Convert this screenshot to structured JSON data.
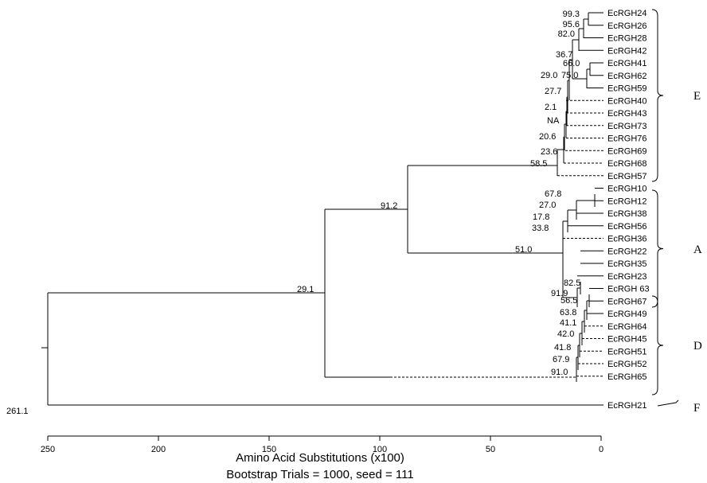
{
  "tree": {
    "leaves": [
      "EcRGH24",
      "EcRGH26",
      "EcRGH28",
      "EcRGH42",
      "EcRGH41",
      "EcRGH62",
      "EcRGH59",
      "EcRGH40",
      "EcRGH43",
      "EcRGH73",
      "EcRGH76",
      "EcRGH69",
      "EcRGH68",
      "EcRGH57",
      "EcRGH10",
      "EcRGH12",
      "EcRGH38",
      "EcRGH56",
      "EcRGH36",
      "EcRGH22",
      "EcRGH35",
      "EcRGH23",
      "EcRGH 63",
      "EcRGH67",
      "EcRGH49",
      "EcRGH64",
      "EcRGH45",
      "EcRGH51",
      "EcRGH52",
      "EcRGH65",
      "EcRGH21"
    ],
    "node_labels": [
      "99.3",
      "95.6",
      "82.0",
      "36.7",
      "66.0",
      "29.0",
      "75.0",
      "27.7",
      "2.1",
      "NA",
      "20.6",
      "23.6",
      "58.5",
      "67.8",
      "27.0",
      "17.8",
      "33.8",
      "51.0",
      "82.5",
      "91.9",
      "91.2",
      "56.5",
      "63.8",
      "41.1",
      "42.0",
      "41.8",
      "67.9",
      "91.0",
      "29.1",
      "261.1"
    ],
    "groups": [
      "E",
      "A",
      "D",
      "F"
    ]
  },
  "axis": {
    "ticks": [
      "250",
      "200",
      "150",
      "100",
      "50",
      "0"
    ],
    "title": "Amino Acid Substitutions (x100)",
    "subtitle": "Bootstrap Trials = 1000, seed = 111"
  }
}
